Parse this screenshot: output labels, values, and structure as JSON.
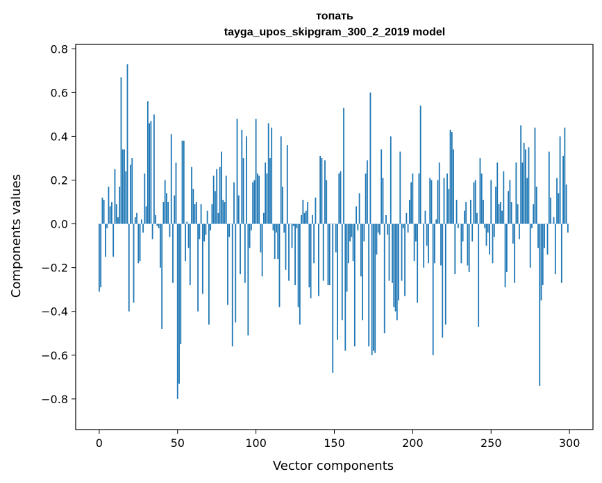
{
  "chart_data": {
    "type": "bar",
    "title": "топать",
    "subtitle": "tayga_upos_skipgram_300_2_2019 model",
    "xlabel": "Vector components",
    "ylabel": "Components values",
    "xlim": [
      -15,
      315
    ],
    "ylim": [
      -0.94,
      0.82
    ],
    "x_ticks": [
      0,
      50,
      100,
      150,
      200,
      250,
      300
    ],
    "y_ticks": [
      -0.8,
      -0.6,
      -0.4,
      -0.2,
      0.0,
      0.2,
      0.4,
      0.6,
      0.8
    ],
    "x_tick_labels": [
      "0",
      "50",
      "100",
      "150",
      "200",
      "250",
      "300"
    ],
    "y_tick_labels": [
      "−0.8",
      "−0.6",
      "−0.4",
      "−0.2",
      "0.0",
      "0.2",
      "0.4",
      "0.6",
      "0.8"
    ],
    "grid": false,
    "bar_color": "#1f77b4",
    "values": [
      -0.31,
      -0.29,
      0.12,
      0.11,
      -0.15,
      -0.02,
      0.17,
      0.08,
      0.1,
      -0.15,
      0.25,
      0.09,
      0.03,
      0.17,
      0.67,
      0.34,
      0.34,
      0.24,
      0.73,
      -0.4,
      0.27,
      0.3,
      -0.36,
      0.03,
      0.05,
      -0.18,
      -0.17,
      0.02,
      -0.04,
      0.23,
      0.08,
      0.56,
      0.46,
      0.47,
      -0.07,
      0.5,
      0.04,
      -0.01,
      -0.02,
      -0.2,
      -0.48,
      0.1,
      0.2,
      0.14,
      0.1,
      -0.06,
      0.41,
      -0.27,
      0.13,
      0.28,
      -0.8,
      -0.73,
      -0.55,
      0.38,
      0.38,
      -0.17,
      0.01,
      -0.11,
      -0.28,
      0.26,
      0.16,
      0.09,
      0.1,
      -0.4,
      -0.07,
      0.09,
      -0.32,
      -0.08,
      -0.05,
      0.06,
      -0.46,
      -0.03,
      0.09,
      0.22,
      0.15,
      0.25,
      0.05,
      0.26,
      0.33,
      0.11,
      0.1,
      0.22,
      -0.37,
      -0.06,
      0.0,
      -0.56,
      0.19,
      -0.45,
      0.48,
      0.13,
      -0.23,
      0.43,
      0.3,
      -0.27,
      0.4,
      -0.51,
      -0.11,
      -0.03,
      0.19,
      0.2,
      0.48,
      0.23,
      0.22,
      -0.13,
      -0.24,
      0.05,
      0.28,
      0.23,
      0.46,
      0.3,
      0.44,
      -0.03,
      -0.16,
      -0.04,
      -0.16,
      -0.38,
      0.4,
      0.17,
      -0.04,
      -0.21,
      0.36,
      -0.26,
      0.0,
      -0.11,
      -0.01,
      -0.28,
      -0.02,
      -0.38,
      -0.46,
      0.04,
      0.11,
      0.05,
      0.06,
      0.1,
      -0.29,
      -0.34,
      0.04,
      -0.18,
      0.12,
      0.0,
      -0.33,
      0.31,
      0.3,
      -0.26,
      0.29,
      0.2,
      -0.28,
      -0.28,
      0.0,
      -0.68,
      0.0,
      -0.13,
      -0.53,
      0.23,
      0.24,
      -0.44,
      0.53,
      -0.58,
      -0.31,
      -0.18,
      -0.08,
      -0.06,
      -0.17,
      -0.56,
      0.08,
      -0.03,
      0.14,
      -0.24,
      -0.44,
      -0.08,
      0.23,
      0.29,
      -0.56,
      0.6,
      -0.6,
      -0.58,
      -0.59,
      -0.14,
      -0.04,
      -0.05,
      0.34,
      0.21,
      -0.5,
      0.04,
      -0.05,
      -0.26,
      0.4,
      -0.27,
      -0.38,
      -0.4,
      -0.44,
      -0.35,
      0.33,
      -0.26,
      -0.02,
      -0.33,
      0.05,
      -0.04,
      0.11,
      0.19,
      0.23,
      -0.17,
      -0.08,
      -0.36,
      0.23,
      0.54,
      0.0,
      -0.2,
      0.06,
      -0.1,
      -0.18,
      0.21,
      0.2,
      -0.6,
      -0.18,
      0.02,
      0.2,
      0.28,
      -0.19,
      -0.52,
      0.21,
      -0.46,
      0.23,
      0.16,
      0.43,
      0.42,
      0.34,
      -0.23,
      0.11,
      -0.02,
      0.0,
      -0.18,
      -0.08,
      0.06,
      0.1,
      -0.19,
      -0.22,
      0.11,
      -0.08,
      0.19,
      0.2,
      0.05,
      -0.47,
      0.3,
      0.23,
      0.11,
      -0.02,
      -0.1,
      -0.04,
      -0.14,
      0.2,
      -0.18,
      -0.06,
      0.17,
      0.28,
      0.09,
      0.1,
      0.06,
      0.24,
      -0.29,
      -0.22,
      0.15,
      0.2,
      0.1,
      -0.09,
      -0.27,
      0.28,
      0.09,
      -0.07,
      0.45,
      0.28,
      0.37,
      0.34,
      0.21,
      0.35,
      -0.2,
      -0.02,
      0.09,
      0.44,
      0.17,
      -0.11,
      -0.74,
      -0.35,
      -0.28,
      -0.11,
      0.0,
      -0.14,
      0.33,
      0.12,
      0.0,
      0.03,
      -0.23,
      0.21,
      0.14,
      0.4,
      -0.27,
      0.31,
      0.44,
      0.18,
      -0.04
    ]
  }
}
